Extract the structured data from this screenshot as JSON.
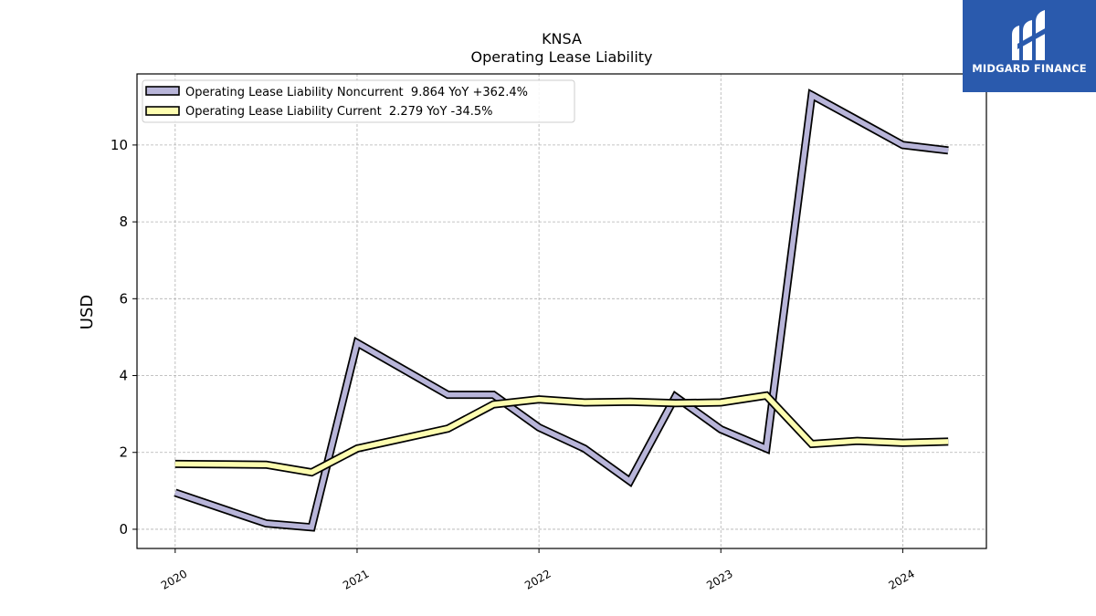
{
  "chart_data": {
    "type": "line",
    "title": "KNSA",
    "subtitle": "Operating Lease Liability",
    "xlabel": "",
    "ylabel": "USD",
    "xlim": [
      2019.79,
      2024.46
    ],
    "ylim": [
      -0.5,
      11.85
    ],
    "x_ticks": [
      2020,
      2021,
      2022,
      2023,
      2024
    ],
    "x_tick_labels": [
      "2020",
      "2021",
      "2022",
      "2023",
      "2024"
    ],
    "y_ticks": [
      0,
      2,
      4,
      6,
      8,
      10
    ],
    "y_tick_labels": [
      "0",
      "2",
      "4",
      "6",
      "8",
      "10"
    ],
    "grid": true,
    "legend_position": "top-left",
    "x": [
      2020.0,
      2020.5,
      2020.75,
      2021.0,
      2021.5,
      2021.75,
      2022.0,
      2022.25,
      2022.5,
      2022.75,
      2023.0,
      2023.25,
      2023.5,
      2023.75,
      2024.0,
      2024.25
    ],
    "series": [
      {
        "name": "Operating Lease Liability Noncurrent  9.864 YoY +362.4%",
        "color": "#b8b5d9",
        "values": [
          0.95,
          0.15,
          0.05,
          4.85,
          3.5,
          3.5,
          2.65,
          2.1,
          1.25,
          3.45,
          2.6,
          2.1,
          11.3,
          10.65,
          10.0,
          9.86
        ]
      },
      {
        "name": "Operating Lease Liability Current  2.279 YoY -34.5%",
        "color": "#fdfdb0",
        "values": [
          1.7,
          1.68,
          1.48,
          2.1,
          2.62,
          3.25,
          3.38,
          3.3,
          3.32,
          3.28,
          3.3,
          3.48,
          2.22,
          2.3,
          2.25,
          2.28
        ]
      }
    ]
  },
  "logo": {
    "text": "MIDGARD FINANCE",
    "icon": "midgard-logo-icon",
    "background": "#2a5aad"
  }
}
